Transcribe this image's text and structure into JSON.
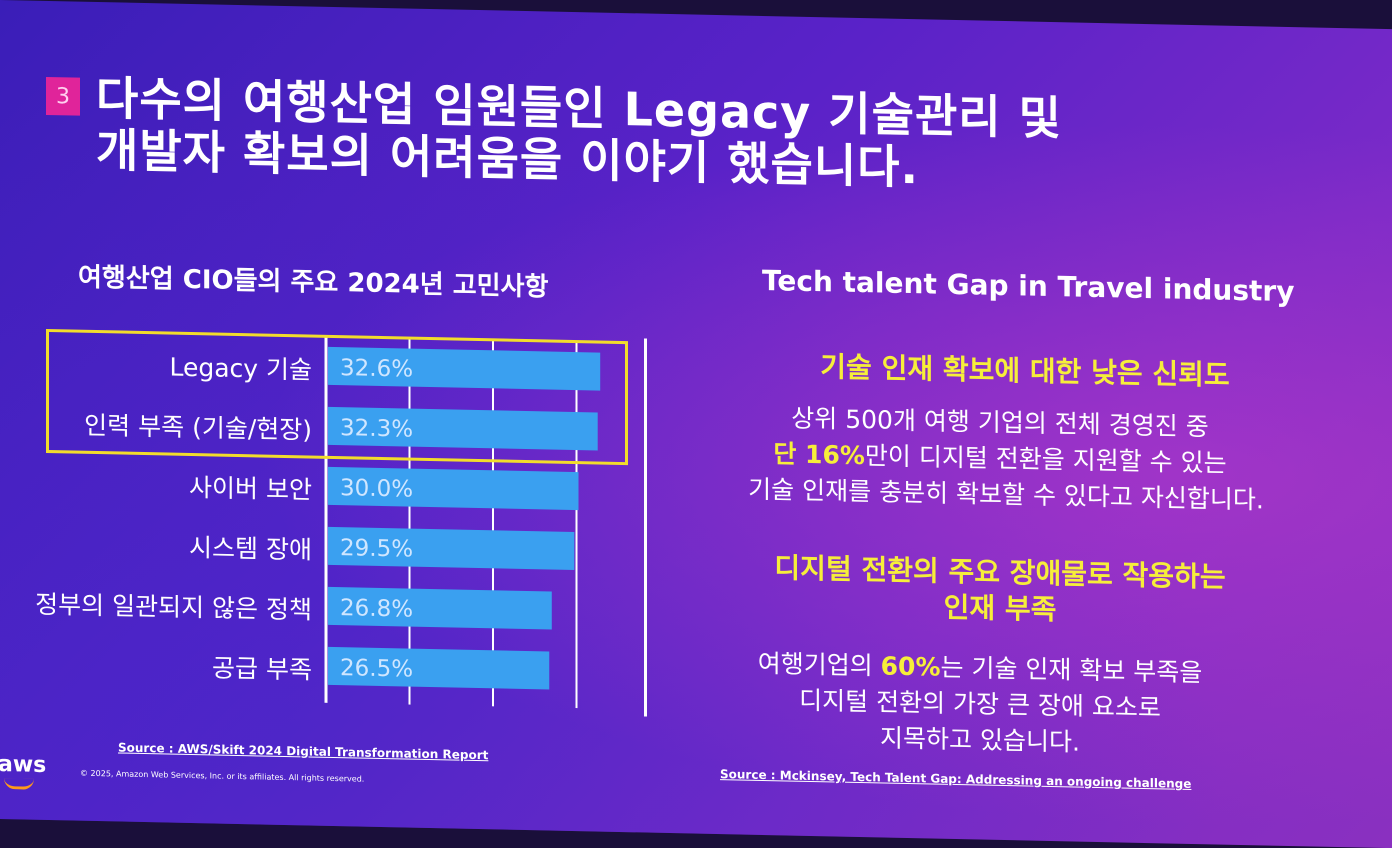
{
  "slide": {
    "number": "3",
    "title_line1": "다수의 여행산업 임원들인 Legacy 기술관리 및",
    "title_line2": "개발자 확보의 어려움을 이야기 했습니다."
  },
  "chart_data": {
    "type": "bar",
    "orientation": "horizontal",
    "title": "여행산업 CIO들의 주요 2024년 고민사항",
    "categories": [
      "Legacy 기술",
      "인력 부족 (기술/현장)",
      "사이버 보안",
      "시스템 장애",
      "정부의 일관되지 않은 정책",
      "공급 부족"
    ],
    "values": [
      32.6,
      32.3,
      30.0,
      29.5,
      26.8,
      26.5
    ],
    "value_labels": [
      "32.6%",
      "32.3%",
      "30.0%",
      "29.5%",
      "26.8%",
      "26.5%"
    ],
    "xlim": [
      0,
      35
    ],
    "grid": true,
    "highlighted": [
      "Legacy 기술",
      "인력 부족 (기술/현장)"
    ],
    "bar_color": "#3aa0f0",
    "highlight_color": "#f2dc2c",
    "source": "Source : AWS/Skift 2024 Digital Transformation Report"
  },
  "right_panel": {
    "heading": "Tech talent Gap in Travel industry",
    "section1": {
      "title": "기술 인재 확보에 대한 낮은 신뢰도",
      "line1": "상위 500개 여행 기업의 전체 경영진 중",
      "line2_highlight": "단 16%",
      "line2_rest": "만이 디지털 전환을 지원할 수 있는",
      "line3": "기술 인재를 충분히 확보할 수 있다고 자신합니다."
    },
    "section2": {
      "title_line1": "디지털 전환의 주요 장애물로 작용하는",
      "title_line2": "인재 부족",
      "line1_prefix": "여행기업의 ",
      "line1_highlight": "60%",
      "line1_rest": "는 기술 인재 확보 부족을",
      "line2": "디지털 전환의 가장 큰 장애 요소로",
      "line3": "지목하고 있습니다."
    },
    "source": "Source : Mckinsey, Tech Talent Gap: Addressing an ongoing challenge"
  },
  "footer": {
    "copyright": "© 2025, Amazon Web Services, Inc. or its affiliates. All rights reserved.",
    "logo": "aws"
  },
  "colors": {
    "accent_yellow": "#f6ee3a",
    "slide_number_bg": "#e0249a",
    "background": "#5a22c8"
  }
}
